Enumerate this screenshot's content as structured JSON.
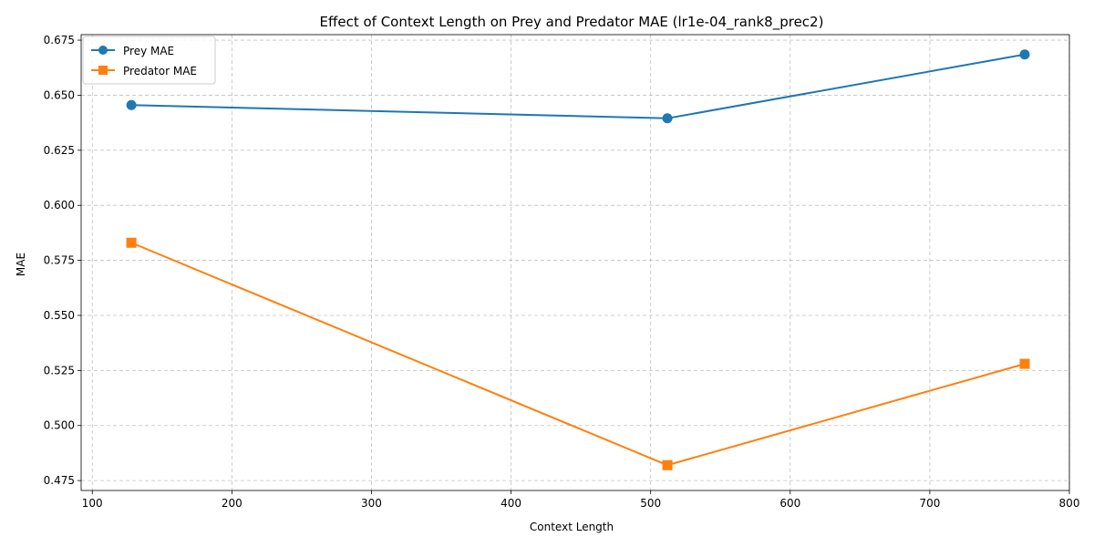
{
  "chart_data": {
    "type": "line",
    "title": "Effect of Context Length on Prey and Predator MAE (lr1e-04_rank8_prec2)",
    "xlabel": "Context Length",
    "ylabel": "MAE",
    "x": [
      128,
      512,
      768
    ],
    "xlim": [
      92,
      800
    ],
    "ylim": [
      0.4705,
      0.6775
    ],
    "xticks": [
      100,
      200,
      300,
      400,
      500,
      600,
      700,
      800
    ],
    "yticks": [
      0.475,
      0.5,
      0.525,
      0.55,
      0.575,
      0.6,
      0.625,
      0.65,
      0.675
    ],
    "xtick_labels": [
      "100",
      "200",
      "300",
      "400",
      "500",
      "600",
      "700",
      "800"
    ],
    "ytick_labels": [
      "0.475",
      "0.500",
      "0.525",
      "0.550",
      "0.575",
      "0.600",
      "0.625",
      "0.650",
      "0.675"
    ],
    "grid": true,
    "legend_position": "top-left",
    "series": [
      {
        "name": "Prey MAE",
        "values": [
          0.6455,
          0.6395,
          0.6685
        ],
        "color": "#1f77b4",
        "marker": "circle"
      },
      {
        "name": "Predator MAE",
        "values": [
          0.583,
          0.482,
          0.528
        ],
        "color": "#ff7f0e",
        "marker": "square"
      }
    ]
  }
}
